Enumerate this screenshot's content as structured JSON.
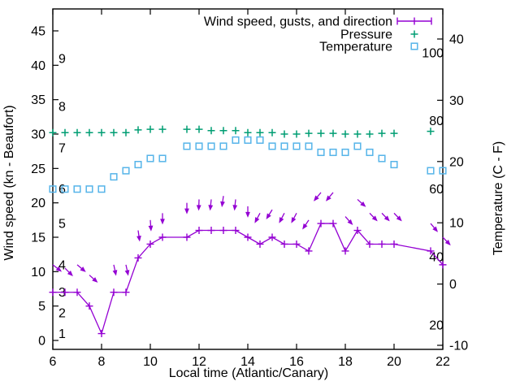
{
  "figure": {
    "background_color": "#ffffff",
    "border_color": "#000000",
    "legend": {
      "position": "top-right-inside",
      "entries": [
        {
          "label": "Wind speed, gusts, and direction",
          "marker": "errorbar-sample",
          "color": "#9400D3"
        },
        {
          "label": "Pressure",
          "marker": "plus",
          "color": "#009E73"
        },
        {
          "label": "Temperature",
          "marker": "open-square",
          "color": "#56B4E9"
        }
      ]
    }
  },
  "chart_data": {
    "type": "line",
    "title": "",
    "xlabel": "Local time (Atlantic/Canary)",
    "ylabel_left": "Wind speed (kn - Beaufort)",
    "ylabel_right": "Temperature (C - F)",
    "x_range": [
      6,
      22
    ],
    "x_ticks": [
      6,
      8,
      10,
      12,
      14,
      16,
      18,
      20,
      22
    ],
    "y_left_ticks": [
      0,
      5,
      10,
      15,
      20,
      25,
      30,
      35,
      40,
      45
    ],
    "y_right_ticks": [
      -10,
      0,
      10,
      20,
      30,
      40
    ],
    "grid": false,
    "beaufort_scale_labels": [
      {
        "label": "1",
        "kn": 1
      },
      {
        "label": "2",
        "kn": 4
      },
      {
        "label": "3",
        "kn": 7
      },
      {
        "label": "4",
        "kn": 11
      },
      {
        "label": "5",
        "kn": 17
      },
      {
        "label": "6",
        "kn": 22
      },
      {
        "label": "7",
        "kn": 28
      },
      {
        "label": "8",
        "kn": 34
      },
      {
        "label": "9",
        "kn": 41
      }
    ],
    "fahrenheit_scale_labels": [
      {
        "label": "20",
        "f": 20
      },
      {
        "label": "40",
        "f": 40
      },
      {
        "label": "60",
        "f": 60
      },
      {
        "label": "80",
        "f": 80
      },
      {
        "label": "100",
        "f": 100
      }
    ],
    "series": [
      {
        "name": "Wind speed",
        "style": "line+plus",
        "color": "#9400D3",
        "axis": "left",
        "units": "kn",
        "x": [
          6,
          6.5,
          7,
          7.5,
          8,
          8.5,
          9,
          9.5,
          10,
          10.5,
          11.5,
          12,
          12.5,
          13,
          13.5,
          14,
          14.5,
          15,
          15.5,
          16,
          16.5,
          17,
          17.5,
          18,
          18.5,
          19,
          19.5,
          20,
          21.5,
          22
        ],
        "y": [
          7,
          7,
          7,
          5,
          1,
          7,
          7,
          12,
          14,
          15,
          15,
          16,
          16,
          16,
          16,
          15,
          14,
          15,
          14,
          14,
          13,
          17,
          17,
          13,
          16,
          14,
          14,
          14,
          13,
          11
        ]
      },
      {
        "name": "Gusts with direction arrows",
        "style": "vectors",
        "color": "#9400D3",
        "axis": "left",
        "units": "kn",
        "direction_note": "screen angle degrees: 0=right, 90=down",
        "x": [
          6,
          6.5,
          7,
          7.5,
          8.5,
          9,
          9.5,
          10,
          10.5,
          11.5,
          12,
          12.5,
          13,
          13.5,
          14,
          14.5,
          15,
          15.5,
          16,
          16.5,
          17,
          17.5,
          18,
          18.5,
          19,
          19.5,
          20,
          21.5,
          22
        ],
        "y": [
          11,
          10.5,
          11,
          9.5,
          11,
          11,
          16,
          17.5,
          18.5,
          20,
          20.5,
          20.5,
          21,
          20.5,
          19.5,
          18.5,
          19,
          18.5,
          18.5,
          17.5,
          21.5,
          21.5,
          18,
          20.5,
          18.5,
          18.5,
          18.5,
          17,
          15
        ],
        "dir_deg": [
          38,
          45,
          40,
          42,
          78,
          78,
          82,
          86,
          90,
          90,
          92,
          96,
          98,
          96,
          90,
          118,
          122,
          118,
          118,
          124,
          130,
          130,
          48,
          42,
          46,
          46,
          46,
          50,
          46
        ]
      },
      {
        "name": "Pressure",
        "style": "plus",
        "color": "#009E73",
        "axis": "left",
        "units": "left-axis position (no pressure scale shown)",
        "x": [
          6,
          6.5,
          7,
          7.5,
          8,
          8.5,
          9,
          9.5,
          10,
          10.5,
          11.5,
          12,
          12.5,
          13,
          13.5,
          14,
          14.5,
          15,
          15.5,
          16,
          16.5,
          17,
          17.5,
          18,
          18.5,
          19,
          19.5,
          20,
          21.5
        ],
        "y": [
          30.2,
          30.2,
          30.2,
          30.2,
          30.2,
          30.2,
          30.2,
          30.6,
          30.7,
          30.7,
          30.7,
          30.7,
          30.5,
          30.5,
          30.5,
          30.2,
          30.2,
          30.2,
          30.0,
          30.0,
          30.1,
          30.1,
          30.1,
          30.0,
          30.0,
          30.0,
          30.1,
          30.1,
          30.4
        ]
      },
      {
        "name": "Temperature",
        "style": "open-square",
        "color": "#56B4E9",
        "axis": "right",
        "units": "C",
        "x": [
          6,
          6.5,
          7,
          7.5,
          8,
          8.5,
          9,
          9.5,
          10,
          10.5,
          11.5,
          12,
          12.5,
          13,
          13.5,
          14,
          14.5,
          15,
          15.5,
          16,
          16.5,
          17,
          17.5,
          18,
          18.5,
          19,
          19.5,
          20,
          21.5,
          22
        ],
        "y": [
          15.5,
          15.5,
          15.5,
          15.5,
          15.5,
          17.5,
          18.5,
          19.5,
          20.5,
          20.5,
          22.5,
          22.5,
          22.5,
          22.5,
          23.5,
          23.5,
          23.5,
          22.5,
          22.5,
          22.5,
          22.5,
          21.5,
          21.5,
          21.5,
          22.5,
          21.5,
          20.5,
          19.5,
          18.5,
          18.5
        ]
      }
    ]
  }
}
